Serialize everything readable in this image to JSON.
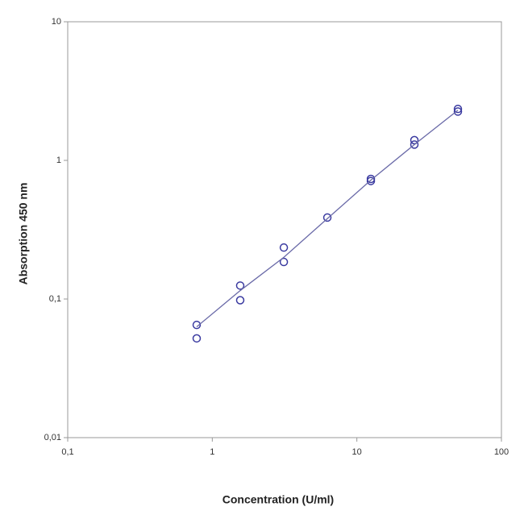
{
  "chart_data": {
    "type": "scatter",
    "x_label": "Concentration (U/ml)",
    "y_label": "Absorption 450 nm",
    "xscale": "log",
    "yscale": "log",
    "xlim": [
      0.1,
      100
    ],
    "ylim": [
      0.01,
      10
    ],
    "xticks": [
      {
        "value": 0.1,
        "label": "0,1"
      },
      1,
      10,
      100
    ],
    "yticks": [
      {
        "value": 0.01,
        "label": "0,01"
      },
      {
        "value": 0.1,
        "label": "0,1"
      },
      1,
      10
    ],
    "series": [
      {
        "color": "#3a3aa0",
        "marker": "circle",
        "x": [
          0.78,
          0.78,
          1.56,
          1.56,
          3.125,
          3.125,
          6.25,
          12.5,
          12.5,
          25,
          25,
          50,
          50
        ],
        "values": [
          0.065,
          0.052,
          0.125,
          0.098,
          0.235,
          0.185,
          0.387,
          0.735,
          0.71,
          1.4,
          1.3,
          2.35,
          2.25
        ]
      },
      {
        "color": "#6a6aa8",
        "marker": "line",
        "x": [
          0.78,
          1.56,
          3.125,
          6.25,
          12.5,
          25,
          50
        ],
        "values": [
          0.063,
          0.115,
          0.2,
          0.38,
          0.72,
          1.3,
          2.3
        ]
      }
    ]
  }
}
